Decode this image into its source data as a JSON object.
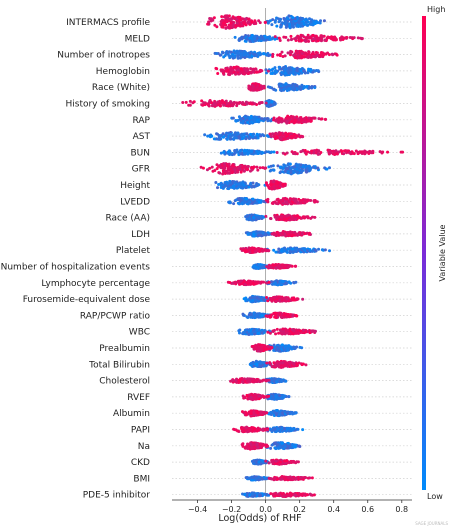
{
  "chart_data": {
    "type": "scatter",
    "xlabel": "Log(Odds) of RHF",
    "xlim": [
      -0.55,
      0.86
    ],
    "xticks": [
      -0.4,
      -0.2,
      0.0,
      0.2,
      0.4,
      0.6,
      0.8
    ],
    "xtick_labels": [
      "−0.4",
      "−0.2",
      "0.0",
      "0.2",
      "0.4",
      "0.6",
      "0.8"
    ],
    "colorbar": {
      "label": "Variable Value",
      "high": "High",
      "low": "Low",
      "high_color": "#ff0052",
      "low_color": "#008bfb"
    },
    "features": [
      {
        "name": "INTERMACS profile",
        "low_range": [
          0.0,
          0.36
        ],
        "high_range": [
          -0.35,
          0.0
        ],
        "wide": 1.0
      },
      {
        "name": "MELD",
        "low_range": [
          -0.18,
          0.08
        ],
        "high_range": [
          0.05,
          0.58
        ],
        "wide": 0.55
      },
      {
        "name": "Number of inotropes",
        "low_range": [
          -0.3,
          0.06
        ],
        "high_range": [
          0.04,
          0.45
        ],
        "wide": 0.6
      },
      {
        "name": "Hemoglobin",
        "low_range": [
          0.0,
          0.32
        ],
        "high_range": [
          -0.3,
          0.02
        ],
        "wide": 0.7
      },
      {
        "name": "Race (White)",
        "low_range": [
          0.0,
          0.3
        ],
        "high_range": [
          -0.1,
          0.0
        ],
        "wide": 0.6
      },
      {
        "name": "History of smoking",
        "low_range": [
          0.0,
          0.06
        ],
        "high_range": [
          -0.5,
          0.05
        ],
        "wide": 0.5
      },
      {
        "name": "RAP",
        "low_range": [
          -0.2,
          0.06
        ],
        "high_range": [
          0.02,
          0.36
        ],
        "wide": 0.6
      },
      {
        "name": "AST",
        "low_range": [
          -0.37,
          0.06
        ],
        "high_range": [
          0.02,
          0.22
        ],
        "wide": 0.6
      },
      {
        "name": "BUN",
        "low_range": [
          -0.28,
          0.05
        ],
        "high_range": [
          0.04,
          0.82
        ],
        "wide": 0.4
      },
      {
        "name": "GFR",
        "low_range": [
          0.0,
          0.38
        ],
        "high_range": [
          -0.38,
          0.0
        ],
        "wide": 0.85
      },
      {
        "name": "Height",
        "low_range": [
          -0.3,
          0.0
        ],
        "high_range": [
          0.0,
          0.12
        ],
        "wide": 0.7
      },
      {
        "name": "LVEDD",
        "low_range": [
          -0.22,
          0.02
        ],
        "high_range": [
          0.0,
          0.32
        ],
        "wide": 0.5
      },
      {
        "name": "Race (AA)",
        "low_range": [
          -0.12,
          0.0
        ],
        "high_range": [
          0.0,
          0.3
        ],
        "wide": 0.45
      },
      {
        "name": "LDH",
        "low_range": [
          -0.12,
          0.05
        ],
        "high_range": [
          0.02,
          0.28
        ],
        "wide": 0.4
      },
      {
        "name": "Platelet",
        "low_range": [
          0.0,
          0.38
        ],
        "high_range": [
          -0.15,
          0.02
        ],
        "wide": 0.4
      },
      {
        "name": "Number of hospitalization events",
        "low_range": [
          -0.08,
          0.02
        ],
        "high_range": [
          0.0,
          0.18
        ],
        "wide": 0.35
      },
      {
        "name": "Lymphocyte percentage",
        "low_range": [
          0.0,
          0.18
        ],
        "high_range": [
          -0.22,
          0.02
        ],
        "wide": 0.35
      },
      {
        "name": "Furosemide-equivalent dose",
        "low_range": [
          -0.14,
          0.04
        ],
        "high_range": [
          0.0,
          0.22
        ],
        "wide": 0.45
      },
      {
        "name": "RAP/PCWP ratio",
        "low_range": [
          -0.14,
          0.04
        ],
        "high_range": [
          0.0,
          0.2
        ],
        "wide": 0.4
      },
      {
        "name": "WBC",
        "low_range": [
          -0.16,
          0.04
        ],
        "high_range": [
          0.0,
          0.32
        ],
        "wide": 0.45
      },
      {
        "name": "Prealbumin",
        "low_range": [
          0.0,
          0.22
        ],
        "high_range": [
          -0.08,
          0.04
        ],
        "wide": 0.55
      },
      {
        "name": "Total Bilirubin",
        "low_range": [
          -0.1,
          0.04
        ],
        "high_range": [
          0.0,
          0.24
        ],
        "wide": 0.5
      },
      {
        "name": "Cholesterol",
        "low_range": [
          0.0,
          0.12
        ],
        "high_range": [
          -0.22,
          0.02
        ],
        "wide": 0.35
      },
      {
        "name": "RVEF",
        "low_range": [
          0.0,
          0.14
        ],
        "high_range": [
          -0.14,
          0.02
        ],
        "wide": 0.45
      },
      {
        "name": "Albumin",
        "low_range": [
          0.0,
          0.18
        ],
        "high_range": [
          -0.14,
          0.02
        ],
        "wide": 0.45
      },
      {
        "name": "PAPI",
        "low_range": [
          0.0,
          0.22
        ],
        "high_range": [
          -0.2,
          0.02
        ],
        "wide": 0.4
      },
      {
        "name": "Na",
        "low_range": [
          0.0,
          0.22
        ],
        "high_range": [
          -0.14,
          0.02
        ],
        "wide": 0.55
      },
      {
        "name": "CKD",
        "low_range": [
          -0.08,
          0.02
        ],
        "high_range": [
          0.0,
          0.2
        ],
        "wide": 0.35
      },
      {
        "name": "BMI",
        "low_range": [
          -0.12,
          0.02
        ],
        "high_range": [
          0.0,
          0.3
        ],
        "wide": 0.3
      },
      {
        "name": "PDE-5 inhibitor",
        "low_range": [
          -0.14,
          0.02
        ],
        "high_range": [
          0.0,
          0.3
        ],
        "wide": 0.3
      }
    ]
  },
  "watermark": "SAGE JOURNALS"
}
